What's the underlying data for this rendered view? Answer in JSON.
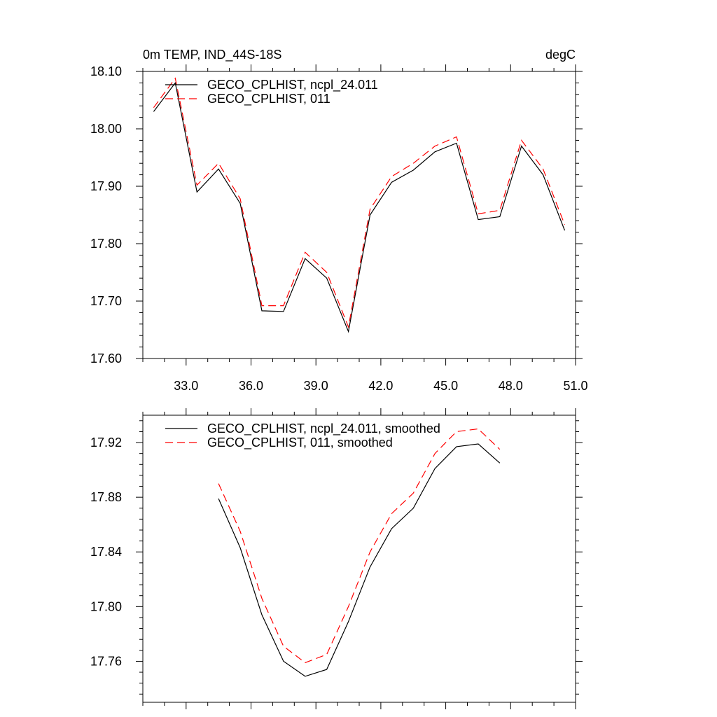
{
  "chart_data": [
    {
      "type": "line",
      "title_left": "0m TEMP, IND_44S-18S",
      "title_right": "degC",
      "xlabel": "",
      "ylabel": "",
      "xlim": [
        31,
        51
      ],
      "ylim": [
        17.6,
        18.1
      ],
      "xticks": [
        33,
        36,
        39,
        42,
        45,
        48,
        51
      ],
      "xtick_labels": [
        "33.0",
        "36.0",
        "39.0",
        "42.0",
        "45.0",
        "48.0",
        "51.0"
      ],
      "yticks": [
        17.6,
        17.7,
        17.8,
        17.9,
        18.0,
        18.1
      ],
      "ytick_labels": [
        "17.60",
        "17.70",
        "17.80",
        "17.90",
        "18.00",
        "18.10"
      ],
      "legend_position": "top-left",
      "grid": false,
      "x": [
        31.5,
        32.5,
        33.5,
        34.5,
        35.5,
        36.5,
        37.5,
        38.5,
        39.5,
        40.5,
        41.5,
        42.5,
        43.5,
        44.5,
        45.5,
        46.5,
        47.5,
        48.5,
        49.5,
        50.5
      ],
      "series": [
        {
          "name": "GECO_CPLHIST, ncpl_24.011",
          "color": "#000000",
          "dash": "solid",
          "values": [
            18.03,
            18.08,
            17.89,
            17.93,
            17.87,
            17.683,
            17.682,
            17.774,
            17.74,
            17.647,
            17.85,
            17.907,
            17.928,
            17.96,
            17.975,
            17.842,
            17.847,
            17.97,
            17.92,
            17.823
          ]
        },
        {
          "name": "GECO_CPLHIST, 011",
          "color": "#ff0000",
          "dash": "dashed",
          "values": [
            18.037,
            18.088,
            17.902,
            17.94,
            17.878,
            17.692,
            17.692,
            17.785,
            17.75,
            17.655,
            17.86,
            17.917,
            17.94,
            17.97,
            17.986,
            17.852,
            17.858,
            17.98,
            17.93,
            17.833
          ]
        }
      ]
    },
    {
      "type": "line",
      "xlabel": "",
      "ylabel": "",
      "xlim": [
        31,
        51
      ],
      "ylim": [
        17.73,
        17.94
      ],
      "xticks": [
        33,
        36,
        39,
        42,
        45,
        48,
        51
      ],
      "yticks": [
        17.76,
        17.8,
        17.84,
        17.88,
        17.92
      ],
      "ytick_labels": [
        "17.76",
        "17.80",
        "17.84",
        "17.88",
        "17.92"
      ],
      "legend_position": "top-left",
      "grid": false,
      "x": [
        34.5,
        35.5,
        36.5,
        37.5,
        38.5,
        39.5,
        40.5,
        41.5,
        42.5,
        43.5,
        44.5,
        45.5,
        46.5,
        47.5
      ],
      "series": [
        {
          "name": "GECO_CPLHIST, ncpl_24.011, smoothed",
          "color": "#000000",
          "dash": "solid",
          "values": [
            17.879,
            17.843,
            17.794,
            17.76,
            17.749,
            17.754,
            17.789,
            17.829,
            17.857,
            17.872,
            17.901,
            17.917,
            17.919,
            17.905
          ]
        },
        {
          "name": "GECO_CPLHIST, 011, smoothed",
          "color": "#ff0000",
          "dash": "dashed",
          "values": [
            17.89,
            17.855,
            17.806,
            17.771,
            17.759,
            17.765,
            17.8,
            17.84,
            17.868,
            17.883,
            17.912,
            17.928,
            17.93,
            17.915
          ]
        }
      ]
    }
  ]
}
